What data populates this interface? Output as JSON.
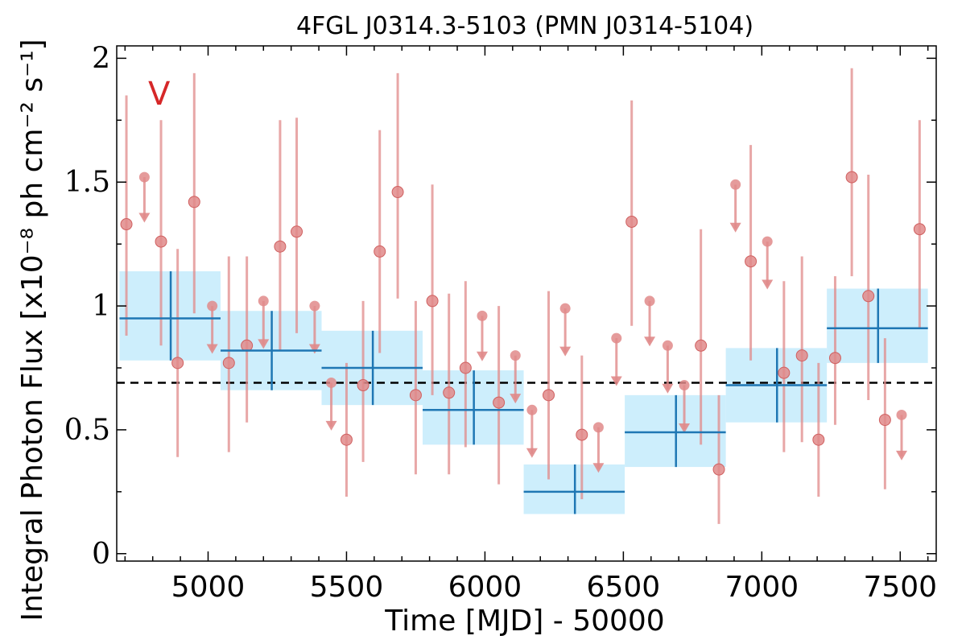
{
  "chart_data": {
    "type": "scatter",
    "title": "4FGL J0314.3-5103 (PMN J0314-5104)",
    "xlabel": "Time [MJD] - 50000",
    "ylabel": "Integral Photon Flux [x10⁻⁸ ph cm⁻² s⁻¹]",
    "panel_label": "V",
    "xlim": [
      4670,
      7630
    ],
    "ylim": [
      -0.03,
      2.05
    ],
    "xticks": [
      5000,
      5500,
      6000,
      6500,
      7000,
      7500
    ],
    "xtick_labels": [
      "5000",
      "5500",
      "6000",
      "6500",
      "7000",
      "7500"
    ],
    "yticks": [
      0,
      0.5,
      1,
      1.5,
      2
    ],
    "ytick_labels": [
      "0",
      "0.5",
      "1",
      "1.5",
      "2"
    ],
    "grid": false,
    "reference_line": {
      "y": 0.69,
      "style": "dashed"
    },
    "colors": {
      "points": "#e08a8a",
      "bins": "#1f77b4",
      "bin_fill": "#cdeefc",
      "panel_label": "#d62728"
    },
    "series": [
      {
        "kind": "measurements",
        "points": [
          {
            "x": 4705,
            "y": 1.33,
            "lo": 0.88,
            "hi": 1.85
          },
          {
            "x": 4830,
            "y": 1.26,
            "lo": 0.84,
            "hi": 1.75
          },
          {
            "x": 4890,
            "y": 0.77,
            "lo": 0.39,
            "hi": 1.23
          },
          {
            "x": 4950,
            "y": 1.42,
            "lo": 0.97,
            "hi": 1.94
          },
          {
            "x": 5075,
            "y": 0.77,
            "lo": 0.41,
            "hi": 1.2
          },
          {
            "x": 5140,
            "y": 0.84,
            "lo": 0.53,
            "hi": 1.2
          },
          {
            "x": 5260,
            "y": 1.24,
            "lo": 0.82,
            "hi": 1.75
          },
          {
            "x": 5320,
            "y": 1.3,
            "lo": 0.89,
            "hi": 1.76
          },
          {
            "x": 5500,
            "y": 0.46,
            "lo": 0.23,
            "hi": 0.77
          },
          {
            "x": 5560,
            "y": 0.68,
            "lo": 0.37,
            "hi": 1.02
          },
          {
            "x": 5620,
            "y": 1.22,
            "lo": 0.81,
            "hi": 1.71
          },
          {
            "x": 5685,
            "y": 1.46,
            "lo": 1.03,
            "hi": 1.94
          },
          {
            "x": 5750,
            "y": 0.64,
            "lo": 0.32,
            "hi": 1.02
          },
          {
            "x": 5810,
            "y": 1.02,
            "lo": 0.64,
            "hi": 1.49
          },
          {
            "x": 5870,
            "y": 0.65,
            "lo": 0.32,
            "hi": 1.05
          },
          {
            "x": 5930,
            "y": 0.75,
            "lo": 0.43,
            "hi": 1.1
          },
          {
            "x": 6050,
            "y": 0.61,
            "lo": 0.28,
            "hi": 1.0
          },
          {
            "x": 6230,
            "y": 0.64,
            "lo": 0.3,
            "hi": 1.06
          },
          {
            "x": 6350,
            "y": 0.48,
            "lo": 0.22,
            "hi": 0.8
          },
          {
            "x": 6530,
            "y": 1.34,
            "lo": 0.92,
            "hi": 1.83
          },
          {
            "x": 6780,
            "y": 0.84,
            "lo": 0.44,
            "hi": 1.31
          },
          {
            "x": 6845,
            "y": 0.34,
            "lo": 0.12,
            "hi": 0.64
          },
          {
            "x": 6960,
            "y": 1.18,
            "lo": 0.78,
            "hi": 1.65
          },
          {
            "x": 7080,
            "y": 0.73,
            "lo": 0.41,
            "hi": 1.1
          },
          {
            "x": 7145,
            "y": 0.8,
            "lo": 0.45,
            "hi": 1.2
          },
          {
            "x": 7205,
            "y": 0.46,
            "lo": 0.23,
            "hi": 0.77
          },
          {
            "x": 7265,
            "y": 0.79,
            "lo": 0.52,
            "hi": 1.12
          },
          {
            "x": 7325,
            "y": 1.52,
            "lo": 1.12,
            "hi": 1.96
          },
          {
            "x": 7385,
            "y": 1.04,
            "lo": 0.62,
            "hi": 1.53
          },
          {
            "x": 7445,
            "y": 0.54,
            "lo": 0.26,
            "hi": 0.87
          },
          {
            "x": 7570,
            "y": 1.31,
            "lo": 0.91,
            "hi": 1.75
          }
        ]
      },
      {
        "kind": "upper_limits",
        "points": [
          {
            "x": 4770,
            "y": 1.52,
            "arrow_to": 1.34
          },
          {
            "x": 5015,
            "y": 1.0,
            "arrow_to": 0.81
          },
          {
            "x": 5200,
            "y": 1.02,
            "arrow_to": 0.83
          },
          {
            "x": 5385,
            "y": 1.0,
            "arrow_to": 0.81
          },
          {
            "x": 5445,
            "y": 0.69,
            "arrow_to": 0.5
          },
          {
            "x": 5990,
            "y": 0.96,
            "arrow_to": 0.78
          },
          {
            "x": 6110,
            "y": 0.8,
            "arrow_to": 0.61
          },
          {
            "x": 6170,
            "y": 0.58,
            "arrow_to": 0.39
          },
          {
            "x": 6290,
            "y": 0.99,
            "arrow_to": 0.8
          },
          {
            "x": 6410,
            "y": 0.51,
            "arrow_to": 0.33
          },
          {
            "x": 6475,
            "y": 0.87,
            "arrow_to": 0.68
          },
          {
            "x": 6595,
            "y": 1.02,
            "arrow_to": 0.84
          },
          {
            "x": 6660,
            "y": 0.84,
            "arrow_to": 0.65
          },
          {
            "x": 6720,
            "y": 0.68,
            "arrow_to": 0.49
          },
          {
            "x": 6905,
            "y": 1.49,
            "arrow_to": 1.3
          },
          {
            "x": 7020,
            "y": 1.26,
            "arrow_to": 1.07
          },
          {
            "x": 7505,
            "y": 0.56,
            "arrow_to": 0.38
          }
        ]
      },
      {
        "kind": "binned",
        "bins": [
          {
            "x0": 4680,
            "x1": 5045,
            "y": 0.95,
            "ylo": 0.78,
            "yhi": 1.14,
            "xc": 4865
          },
          {
            "x0": 5045,
            "x1": 5410,
            "y": 0.82,
            "ylo": 0.66,
            "yhi": 0.98,
            "xc": 5230
          },
          {
            "x0": 5410,
            "x1": 5775,
            "y": 0.75,
            "ylo": 0.6,
            "yhi": 0.9,
            "xc": 5595
          },
          {
            "x0": 5775,
            "x1": 6140,
            "y": 0.58,
            "ylo": 0.44,
            "yhi": 0.74,
            "xc": 5960
          },
          {
            "x0": 6140,
            "x1": 6505,
            "y": 0.25,
            "ylo": 0.16,
            "yhi": 0.36,
            "xc": 6325
          },
          {
            "x0": 6505,
            "x1": 6870,
            "y": 0.49,
            "ylo": 0.35,
            "yhi": 0.64,
            "xc": 6690
          },
          {
            "x0": 6870,
            "x1": 7235,
            "y": 0.68,
            "ylo": 0.53,
            "yhi": 0.83,
            "xc": 7055
          },
          {
            "x0": 7235,
            "x1": 7600,
            "y": 0.91,
            "ylo": 0.77,
            "yhi": 1.07,
            "xc": 7420
          }
        ]
      }
    ]
  }
}
